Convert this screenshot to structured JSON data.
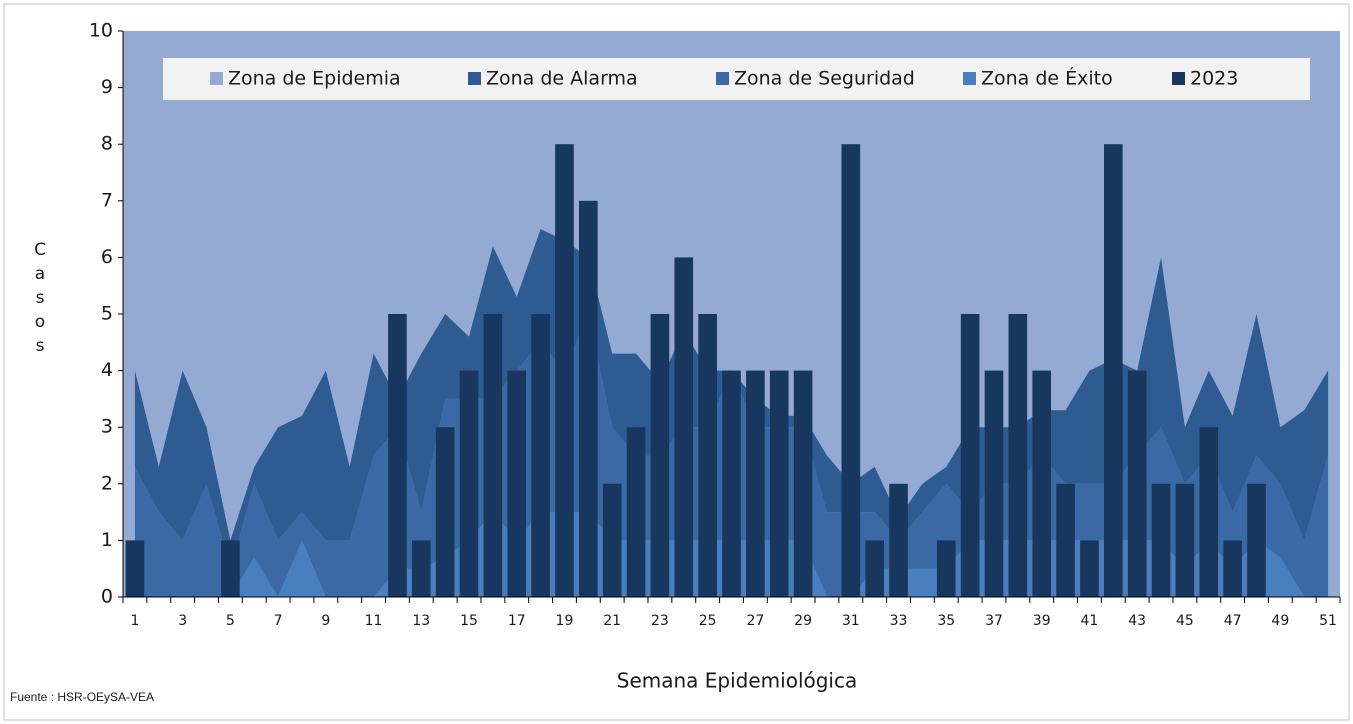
{
  "chart_data": {
    "type": "combo",
    "xlabel": "Semana  Epidemiológica",
    "ylabel": "Casos",
    "source": "Fuente : HSR-OEySA-VEA",
    "categories": [
      "1",
      null,
      "3",
      null,
      "5",
      null,
      "7",
      null,
      "9",
      null,
      "11",
      null,
      "13",
      null,
      "15",
      null,
      "17",
      null,
      "19",
      null,
      "21",
      null,
      "23",
      null,
      "25",
      null,
      "27",
      null,
      "29",
      null,
      "31",
      null,
      "33",
      null,
      "35",
      null,
      "37",
      null,
      "39",
      null,
      "41",
      null,
      "43",
      null,
      "45",
      null,
      "47",
      null,
      "49",
      null,
      "51"
    ],
    "ylim": [
      0,
      10
    ],
    "yticks": [
      0,
      1,
      2,
      3,
      4,
      5,
      6,
      7,
      8,
      9,
      10
    ],
    "series": [
      {
        "name": "Zona de Epidemia",
        "type": "background",
        "color": "#94aad3"
      },
      {
        "name": "Zona de Alarma",
        "type": "area",
        "color": "#2f5b93",
        "values": [
          1.7,
          0.8,
          3,
          1,
          0.5,
          0.3,
          2,
          1.7,
          3,
          1.3,
          1.8,
          0.5,
          2.8,
          1.5,
          1.1,
          2.7,
          1.3,
          2,
          2.3,
          1,
          1.3,
          1.8,
          1.3,
          1.7,
          1,
          0,
          0.5,
          0.2,
          0.2,
          1,
          0.5,
          0.8,
          0.4,
          0.5,
          0.3,
          1.5,
          1,
          1,
          0.8,
          1.3,
          2,
          2.2,
          1.5,
          3,
          1,
          1.5,
          1.7,
          2.5,
          1,
          2.3,
          1.5
        ]
      },
      {
        "name": "Zona de Seguridad",
        "type": "area",
        "color": "#3b69a6",
        "values": [
          2.3,
          1.5,
          1,
          2,
          0.5,
          1.3,
          1,
          0.5,
          1,
          1,
          2.5,
          2.5,
          1,
          2.8,
          2.5,
          2,
          3,
          3,
          2.5,
          3.5,
          2,
          1.5,
          1.5,
          2,
          2,
          3,
          2,
          2,
          2,
          1.5,
          1.5,
          1,
          0.5,
          1,
          1.5,
          0.5,
          1,
          1,
          1.5,
          1,
          1,
          1,
          1.5,
          2,
          1.5,
          1.5,
          1,
          1.5,
          1.3,
          1,
          2.5
        ]
      },
      {
        "name": "Zona de Éxito",
        "type": "area",
        "color": "#4a7fbf",
        "values": [
          0,
          0,
          0,
          0,
          0,
          0.7,
          0,
          1,
          0,
          0,
          0,
          0.5,
          0.5,
          0.7,
          1,
          1.5,
          1,
          1.5,
          1.5,
          1.5,
          1,
          1,
          1,
          1,
          1,
          1,
          1,
          1,
          1,
          0,
          0,
          0.5,
          0.5,
          0.5,
          0.5,
          1,
          1,
          1,
          1,
          1,
          1,
          1,
          1,
          1,
          0.5,
          1,
          0.5,
          1,
          0.7,
          0,
          0
        ]
      },
      {
        "name": "2023",
        "type": "bar",
        "color": "#17375e",
        "values": [
          1,
          0,
          0,
          0,
          1,
          0,
          0,
          0,
          0,
          0,
          0,
          5,
          1,
          3,
          4,
          5,
          4,
          5,
          8,
          7,
          2,
          3,
          5,
          6,
          5,
          4,
          4,
          4,
          4,
          0,
          8,
          1,
          2,
          0,
          1,
          5,
          4,
          5,
          4,
          2,
          1,
          8,
          4,
          2,
          2,
          3,
          1,
          2,
          null,
          null,
          null
        ]
      }
    ]
  }
}
